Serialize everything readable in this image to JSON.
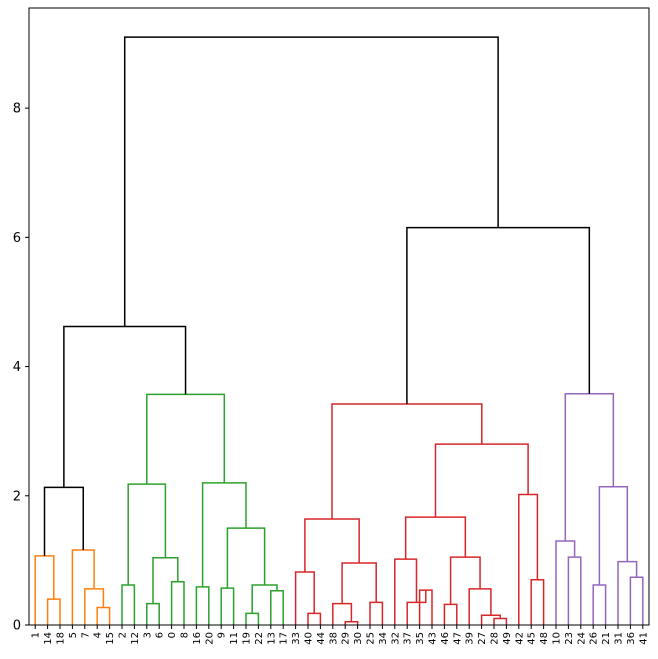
{
  "chart_data": {
    "type": "dendrogram",
    "title": "",
    "xlabel": "",
    "ylabel": "",
    "ylim": [
      0,
      9.55
    ],
    "yticks": [
      0,
      2,
      4,
      6,
      8
    ],
    "grid": false,
    "legend": "none",
    "leaves": [
      1,
      14,
      18,
      5,
      7,
      4,
      15,
      2,
      12,
      3,
      6,
      0,
      8,
      16,
      20,
      9,
      11,
      19,
      22,
      13,
      17,
      33,
      40,
      44,
      38,
      29,
      30,
      25,
      34,
      32,
      37,
      35,
      43,
      46,
      47,
      39,
      27,
      28,
      49,
      42,
      45,
      48,
      10,
      23,
      24,
      26,
      21,
      31,
      36,
      41
    ],
    "colors": {
      "orange": "#ff7f0e",
      "green": "#2ca02c",
      "red": "#d62728",
      "purple": "#9467bd",
      "black": "#000000"
    },
    "links": [
      {
        "a": "L1",
        "b": "L2",
        "h": 0.4,
        "c": "orange"
      },
      {
        "a": "L0",
        "b": "N0",
        "h": 1.07,
        "c": "orange"
      },
      {
        "a": "L5",
        "b": "L6",
        "h": 0.27,
        "c": "orange"
      },
      {
        "a": "L4",
        "b": "N2",
        "h": 0.56,
        "c": "orange"
      },
      {
        "a": "L3",
        "b": "N3",
        "h": 1.16,
        "c": "orange"
      },
      {
        "a": "N1",
        "b": "N4",
        "h": 2.13,
        "c": "black"
      },
      {
        "a": "L7",
        "b": "L8",
        "h": 0.62,
        "c": "green"
      },
      {
        "a": "L9",
        "b": "L10",
        "h": 0.33,
        "c": "green"
      },
      {
        "a": "L11",
        "b": "L12",
        "h": 0.67,
        "c": "green"
      },
      {
        "a": "N7",
        "b": "N8",
        "h": 1.04,
        "c": "green"
      },
      {
        "a": "N6",
        "b": "N9",
        "h": 2.18,
        "c": "green"
      },
      {
        "a": "L13",
        "b": "L14",
        "h": 0.59,
        "c": "green"
      },
      {
        "a": "L15",
        "b": "L16",
        "h": 0.57,
        "c": "green"
      },
      {
        "a": "L17",
        "b": "L18",
        "h": 0.18,
        "c": "green"
      },
      {
        "a": "L19",
        "b": "L20",
        "h": 0.53,
        "c": "green"
      },
      {
        "a": "N13",
        "b": "N14",
        "h": 0.62,
        "c": "green"
      },
      {
        "a": "N12",
        "b": "N15",
        "h": 1.5,
        "c": "green"
      },
      {
        "a": "N11",
        "b": "N16",
        "h": 2.2,
        "c": "green"
      },
      {
        "a": "N10",
        "b": "N17",
        "h": 3.57,
        "c": "green"
      },
      {
        "a": "N5",
        "b": "N18",
        "h": 4.62,
        "c": "black"
      },
      {
        "a": "L22",
        "b": "L23",
        "h": 0.18,
        "c": "red"
      },
      {
        "a": "L21",
        "b": "N20",
        "h": 0.82,
        "c": "red"
      },
      {
        "a": "L25",
        "b": "L26",
        "h": 0.05,
        "c": "red"
      },
      {
        "a": "L24",
        "b": "N22",
        "h": 0.33,
        "c": "red"
      },
      {
        "a": "L27",
        "b": "L28",
        "h": 0.35,
        "c": "red"
      },
      {
        "a": "N23",
        "b": "N24",
        "h": 0.96,
        "c": "red"
      },
      {
        "a": "N21",
        "b": "N25",
        "h": 1.64,
        "c": "red"
      },
      {
        "a": "L31",
        "b": "L32",
        "h": 0.54,
        "c": "red"
      },
      {
        "a": "L30",
        "b": "N27",
        "h": 0.35,
        "c": "red"
      },
      {
        "a": "L29",
        "b": "N28",
        "h": 1.02,
        "c": "red"
      },
      {
        "a": "L33",
        "b": "L34",
        "h": 0.32,
        "c": "red"
      },
      {
        "a": "L37",
        "b": "L38",
        "h": 0.1,
        "c": "red"
      },
      {
        "a": "L36",
        "b": "N31",
        "h": 0.15,
        "c": "red"
      },
      {
        "a": "L35",
        "b": "N32",
        "h": 0.56,
        "c": "red"
      },
      {
        "a": "N30",
        "b": "N33",
        "h": 1.05,
        "c": "red"
      },
      {
        "a": "N29",
        "b": "N34",
        "h": 1.67,
        "c": "red"
      },
      {
        "a": "L40",
        "b": "L41",
        "h": 0.7,
        "c": "red"
      },
      {
        "a": "L39",
        "b": "N36",
        "h": 2.02,
        "c": "red"
      },
      {
        "a": "N35",
        "b": "N37",
        "h": 2.8,
        "c": "red"
      },
      {
        "a": "N26",
        "b": "N38",
        "h": 3.42,
        "c": "red"
      },
      {
        "a": "L43",
        "b": "L44",
        "h": 1.05,
        "c": "purple"
      },
      {
        "a": "L42",
        "b": "N40",
        "h": 1.3,
        "c": "purple"
      },
      {
        "a": "L45",
        "b": "L46",
        "h": 0.62,
        "c": "purple"
      },
      {
        "a": "L48",
        "b": "L49",
        "h": 0.74,
        "c": "purple"
      },
      {
        "a": "L47",
        "b": "N43",
        "h": 0.98,
        "c": "purple"
      },
      {
        "a": "N42",
        "b": "N44",
        "h": 2.14,
        "c": "purple"
      },
      {
        "a": "N41",
        "b": "N45",
        "h": 3.58,
        "c": "purple"
      },
      {
        "a": "N39",
        "b": "N46",
        "h": 6.15,
        "c": "black"
      },
      {
        "a": "N19",
        "b": "N47",
        "h": 9.1,
        "c": "black"
      }
    ]
  }
}
